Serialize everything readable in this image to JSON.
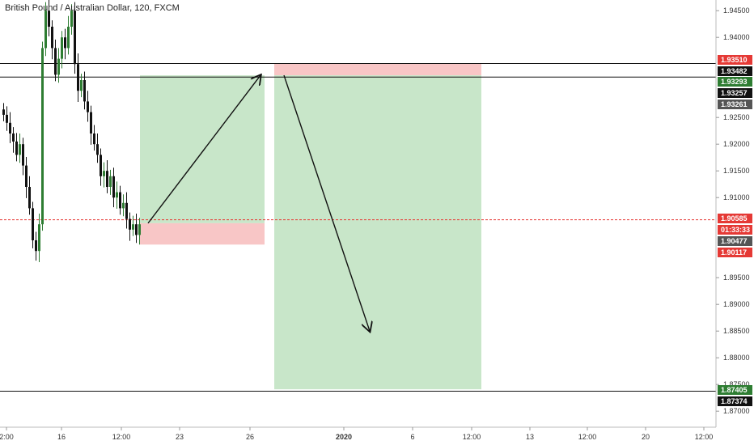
{
  "title": "British Pound / Australian Dollar, 120, FXCM",
  "colors": {
    "up": "#2e7d32",
    "down": "#111111",
    "profit_zone": "#c8e6c9",
    "loss_zone": "#f8c6c6",
    "current_line": "#e53935",
    "axis_bg": "#ffffff"
  },
  "chart_data": {
    "type": "candlestick",
    "ylim": [
      1.867,
      1.947
    ],
    "y_ticks": [
      "1.94500",
      "1.94000",
      "1.92500",
      "1.92000",
      "1.91500",
      "1.91000",
      "1.89500",
      "1.89000",
      "1.88500",
      "1.88000",
      "1.87500",
      "1.87000"
    ],
    "x_ticks": [
      "2:00",
      "16",
      "12:00",
      "23",
      "26",
      "2020",
      "6",
      "12:00",
      "13",
      "12:00",
      "20",
      "12:00"
    ],
    "price_tags": [
      {
        "label": "1.93510",
        "color": "#e53935"
      },
      {
        "label": "1.93482",
        "color": "#111111"
      },
      {
        "label": "1.93293",
        "color": "#2e7d32"
      },
      {
        "label": "1.93257",
        "color": "#111111"
      },
      {
        "label": "1.93261",
        "color": "#555555"
      },
      {
        "label": "1.90585",
        "color": "#e53935"
      },
      {
        "label": "01:33:33",
        "color": "#e53935"
      },
      {
        "label": "1.90477",
        "color": "#555555"
      },
      {
        "label": "1.90117",
        "color": "#e53935"
      },
      {
        "label": "1.87405",
        "color": "#2e7d32"
      },
      {
        "label": "1.87374",
        "color": "#111111"
      }
    ],
    "horizontal_lines": [
      1.9351,
      1.93257,
      1.87374
    ],
    "current_price": 1.90585,
    "long_position": {
      "entry": 1.9052,
      "target": 1.9329,
      "stop": 1.9012
    },
    "short_position": {
      "entry": 1.9329,
      "target": 1.8741,
      "stop": 1.9351
    },
    "candles_close_estimate": [
      1.9255,
      1.924,
      1.922,
      1.9205,
      1.918,
      1.92,
      1.916,
      1.912,
      1.908,
      1.902,
      1.9,
      1.905,
      1.938,
      1.945,
      1.942,
      1.938,
      1.933,
      1.936,
      1.94,
      1.938,
      1.942,
      1.945,
      1.935,
      1.93,
      1.932,
      1.928,
      1.926,
      1.922,
      1.92,
      1.918,
      1.914,
      1.915,
      1.912,
      1.914,
      1.91,
      1.911,
      1.908,
      1.909,
      1.906,
      1.904,
      1.905,
      1.903,
      1.905
    ]
  }
}
